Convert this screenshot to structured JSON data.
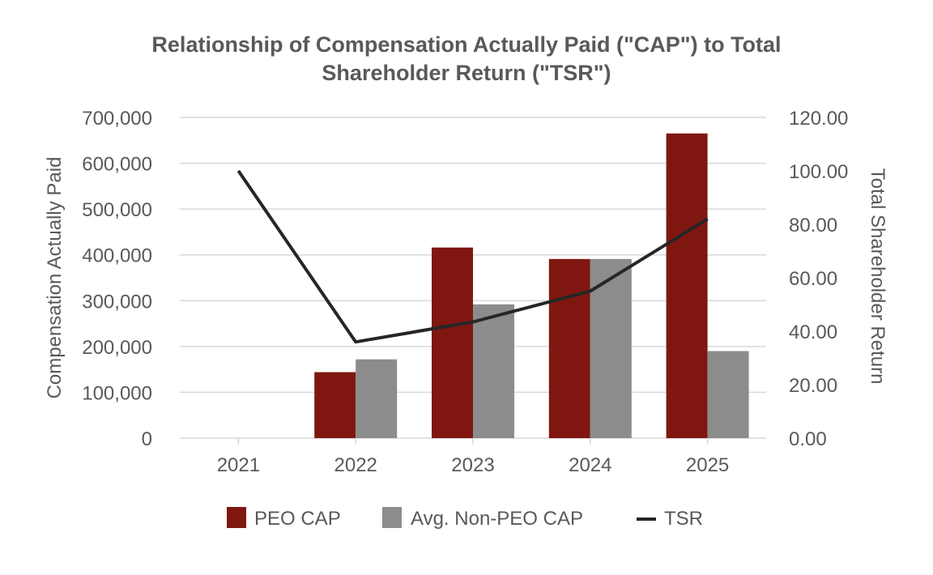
{
  "colors": {
    "peo": "#7f1710",
    "non_peo": "#8c8c8c",
    "tsr": "#262626",
    "grid": "#d9d9d9",
    "text": "#595959"
  },
  "chart_data": {
    "type": "bar",
    "title_lines": [
      "Relationship of Compensation Actually Paid (\"CAP\") to Total",
      "Shareholder Return (\"TSR\")"
    ],
    "categories": [
      "2021",
      "2022",
      "2023",
      "2024",
      "2025"
    ],
    "series": [
      {
        "name": "PEO CAP",
        "type": "bar",
        "axis": "left",
        "values": [
          0,
          144000,
          416000,
          391000,
          665000
        ]
      },
      {
        "name": "Avg. Non-PEO CAP",
        "type": "bar",
        "axis": "left",
        "values": [
          0,
          172000,
          292000,
          391000,
          190000
        ]
      },
      {
        "name": "TSR",
        "type": "line",
        "axis": "right",
        "values": [
          100.0,
          36.0,
          43.5,
          55.0,
          82.0
        ]
      }
    ],
    "ylabel": "Compensation Actually Paid",
    "y2label": "Total Shareholder Return",
    "ylim": [
      0,
      700000
    ],
    "y2lim": [
      0,
      120
    ],
    "yticks": [
      "0",
      "100,000",
      "200,000",
      "300,000",
      "400,000",
      "500,000",
      "600,000",
      "700,000"
    ],
    "y2ticks": [
      "0.00",
      "20.00",
      "40.00",
      "60.00",
      "80.00",
      "100.00",
      "120.00"
    ],
    "grid": true,
    "legend": [
      "PEO CAP",
      "Avg. Non-PEO CAP",
      "TSR"
    ],
    "legend_position": "bottom"
  }
}
